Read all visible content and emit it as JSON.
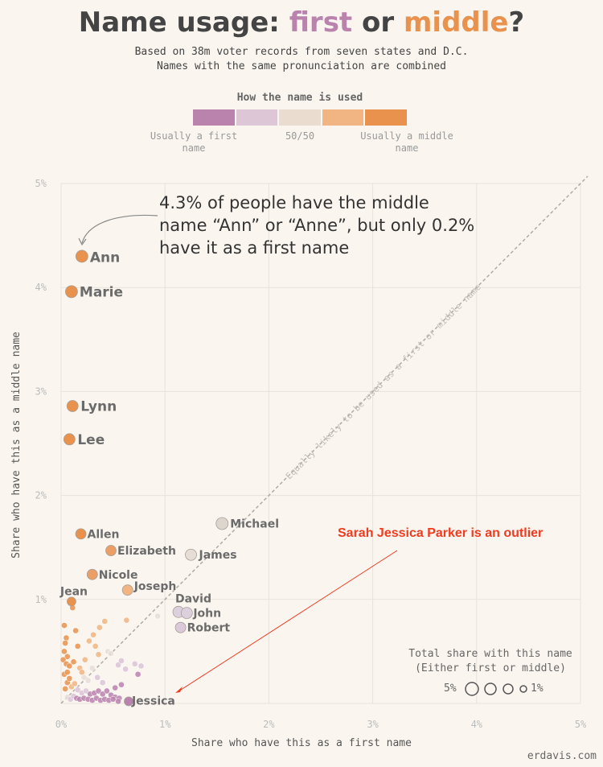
{
  "title": {
    "prefix": "Name usage: ",
    "first_word": "first",
    "connector": " or ",
    "middle_word": "middle",
    "suffix": "?"
  },
  "subtitle": [
    "Based on 38m voter records from seven states and D.C.",
    "Names with the same pronunciation are combined"
  ],
  "legend": {
    "title": "How the name is used",
    "colors": [
      "#b983ad",
      "#ddc6d6",
      "#ebdcd0",
      "#f0b582",
      "#e8924e"
    ],
    "labels": {
      "left": "Usually a first name",
      "center": "50/50",
      "right": "Usually a middle name"
    }
  },
  "annotation": "4.3% of people have the middle name “Ann” or “Anne”, but only 0.2% have it as a first name",
  "outlier_note": "Sarah Jessica Parker is an outlier",
  "size_legend": {
    "title_line1": "Total share with this name",
    "title_line2": "(Either first or middle)",
    "big": "5%",
    "small": "1%"
  },
  "credit": "erdavis.com",
  "chart_data": {
    "type": "scatter",
    "xlabel": "Share who have this as a first name",
    "ylabel": "Share who have this as a middle name",
    "xlim": [
      0,
      5
    ],
    "ylim": [
      0,
      5
    ],
    "x_ticks": [
      "0%",
      "1%",
      "2%",
      "3%",
      "4%",
      "5%"
    ],
    "y_ticks": [
      "1%",
      "2%",
      "3%",
      "4%",
      "5%"
    ],
    "diagonal_label": "Equally likely to be used as a first or middle name",
    "grid": true,
    "points": [
      {
        "name": "Ann",
        "x": 0.2,
        "y": 4.3,
        "color": "#e8924e"
      },
      {
        "name": "Marie",
        "x": 0.1,
        "y": 3.96,
        "color": "#e8924e"
      },
      {
        "name": "Lynn",
        "x": 0.11,
        "y": 2.86,
        "color": "#e8924e"
      },
      {
        "name": "Lee",
        "x": 0.08,
        "y": 2.54,
        "color": "#e8924e"
      },
      {
        "name": "Allen",
        "x": 0.19,
        "y": 1.63,
        "color": "#e8924e"
      },
      {
        "name": "Elizabeth",
        "x": 0.48,
        "y": 1.47,
        "color": "#eb9e65"
      },
      {
        "name": "Nicole",
        "x": 0.3,
        "y": 1.24,
        "color": "#eb9e65"
      },
      {
        "name": "Joseph",
        "x": 0.64,
        "y": 1.09,
        "color": "#f0b582"
      },
      {
        "name": "Jean",
        "x": 0.1,
        "y": 0.98,
        "color": "#e8924e"
      },
      {
        "name": "Michael",
        "x": 1.55,
        "y": 1.73,
        "color": "#ddd6cf"
      },
      {
        "name": "James",
        "x": 1.25,
        "y": 1.43,
        "color": "#e6ddd6"
      },
      {
        "name": "David",
        "x": 1.13,
        "y": 0.88,
        "color": "#ddd0dd"
      },
      {
        "name": "John",
        "x": 1.21,
        "y": 0.87,
        "color": "#ddd0dd"
      },
      {
        "name": "Robert",
        "x": 1.15,
        "y": 0.73,
        "color": "#dbc9d9"
      },
      {
        "name": "Jessica",
        "x": 0.65,
        "y": 0.02,
        "color": "#b983ad"
      }
    ],
    "minor_points": [
      [
        0.03,
        0.75
      ],
      [
        0.05,
        0.63
      ],
      [
        0.04,
        0.58
      ],
      [
        0.03,
        0.5
      ],
      [
        0.06,
        0.45
      ],
      [
        0.02,
        0.42
      ],
      [
        0.05,
        0.38
      ],
      [
        0.08,
        0.36
      ],
      [
        0.11,
        0.92
      ],
      [
        0.14,
        0.7
      ],
      [
        0.16,
        0.55
      ],
      [
        0.12,
        0.4
      ],
      [
        0.18,
        0.34
      ],
      [
        0.2,
        0.3
      ],
      [
        0.23,
        0.42
      ],
      [
        0.22,
        0.25
      ],
      [
        0.27,
        0.6
      ],
      [
        0.33,
        0.55
      ],
      [
        0.31,
        0.66
      ],
      [
        0.37,
        0.73
      ],
      [
        0.42,
        0.79
      ],
      [
        0.36,
        0.47
      ],
      [
        0.45,
        0.5
      ],
      [
        0.48,
        0.48
      ],
      [
        0.55,
        0.37
      ],
      [
        0.58,
        0.41
      ],
      [
        0.63,
        0.8
      ],
      [
        0.77,
        0.36
      ],
      [
        0.71,
        0.38
      ],
      [
        0.74,
        0.28
      ],
      [
        0.62,
        0.33
      ],
      [
        0.93,
        0.84
      ],
      [
        0.3,
        0.34
      ],
      [
        0.35,
        0.25
      ],
      [
        0.4,
        0.2
      ],
      [
        0.52,
        0.15
      ],
      [
        0.58,
        0.18
      ],
      [
        0.26,
        0.22
      ],
      [
        0.06,
        0.2
      ],
      [
        0.1,
        0.16
      ],
      [
        0.13,
        0.19
      ],
      [
        0.16,
        0.13
      ],
      [
        0.2,
        0.1
      ],
      [
        0.24,
        0.12
      ],
      [
        0.28,
        0.09
      ],
      [
        0.32,
        0.1
      ],
      [
        0.36,
        0.12
      ],
      [
        0.4,
        0.09
      ],
      [
        0.44,
        0.12
      ],
      [
        0.48,
        0.08
      ],
      [
        0.52,
        0.06
      ],
      [
        0.56,
        0.05
      ],
      [
        0.06,
        0.06
      ],
      [
        0.09,
        0.04
      ],
      [
        0.12,
        0.07
      ],
      [
        0.15,
        0.05
      ],
      [
        0.18,
        0.04
      ],
      [
        0.22,
        0.05
      ],
      [
        0.26,
        0.04
      ],
      [
        0.3,
        0.03
      ],
      [
        0.34,
        0.05
      ],
      [
        0.38,
        0.03
      ],
      [
        0.42,
        0.04
      ],
      [
        0.46,
        0.03
      ],
      [
        0.5,
        0.04
      ],
      [
        0.55,
        0.02
      ],
      [
        0.03,
        0.28
      ],
      [
        0.06,
        0.3
      ],
      [
        0.08,
        0.24
      ],
      [
        0.04,
        0.14
      ]
    ]
  }
}
